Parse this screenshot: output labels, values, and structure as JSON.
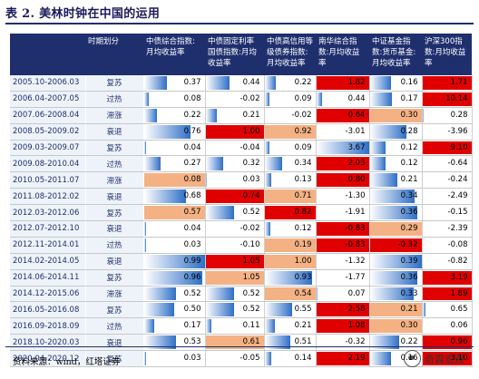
{
  "title": "表 2. 美林时钟在中国的运用",
  "headers": [
    "",
    "时期划分",
    "中债综合指数:月均收益率",
    "中债固定利率国债指数:月均收益率",
    "中债高信用等级债券指数:月均收益率",
    "南华综合指数:月均收益率",
    "中证基金指数:货币基金:月均收益率",
    "沪深300指数:月均收益率"
  ],
  "rows": [
    {
      "period": "2005.10-2006.03",
      "phase": "复苏",
      "values": [
        "0.37",
        "0.44",
        "0.22",
        "1.82",
        "0.16",
        "1.71"
      ]
    },
    {
      "period": "2006.04-2007.05",
      "phase": "过热",
      "values": [
        "0.08",
        "-0.02",
        "0.09",
        "0.44",
        "0.17",
        "10.14"
      ]
    },
    {
      "period": "2007.06-2008.04",
      "phase": "滞涨",
      "values": [
        "0.22",
        "0.21",
        "-0.02",
        "0.64",
        "0.30",
        "0.28"
      ]
    },
    {
      "period": "2008.05-2009.02",
      "phase": "衰退",
      "values": [
        "0.76",
        "1.00",
        "0.92",
        "-3.01",
        "0.28",
        "-3.96"
      ]
    },
    {
      "period": "2009.03-2009.07",
      "phase": "复苏",
      "values": [
        "0.04",
        "-0.04",
        "0.09",
        "3.67",
        "0.12",
        "9.10"
      ]
    },
    {
      "period": "2009.08-2010.04",
      "phase": "过热",
      "values": [
        "0.27",
        "0.32",
        "0.34",
        "2.03",
        "0.12",
        "-0.64"
      ]
    },
    {
      "period": "2010.05-2011.07",
      "phase": "滞涨",
      "values": [
        "0.08",
        "0.03",
        "0.13",
        "0.80",
        "0.21",
        "-0.24"
      ]
    },
    {
      "period": "2011.08-2012.02",
      "phase": "衰退",
      "values": [
        "0.68",
        "0.74",
        "0.71",
        "-1.30",
        "0.34",
        "-2.49"
      ]
    },
    {
      "period": "2012.03-2012.06",
      "phase": "复苏",
      "values": [
        "0.57",
        "0.52",
        "0.82",
        "-1.91",
        "0.36",
        "-0.15"
      ]
    },
    {
      "period": "2012.07-2012.10",
      "phase": "衰退",
      "values": [
        "0.04",
        "-0.02",
        "0.12",
        "-0.83",
        "0.29",
        "-2.39"
      ]
    },
    {
      "period": "2012.11-2014.01",
      "phase": "过热",
      "values": [
        "0.03",
        "-0.10",
        "0.19",
        "-0.83",
        "-0.32",
        "-0.08"
      ]
    },
    {
      "period": "2014.02-2014.05",
      "phase": "衰退",
      "values": [
        "0.99",
        "1.05",
        "1.00",
        "-1.32",
        "0.39",
        "-0.82"
      ]
    },
    {
      "period": "2014.06-2014.11",
      "phase": "复苏",
      "values": [
        "0.96",
        "1.05",
        "0.93",
        "-1.77",
        "0.36",
        "3.19"
      ]
    },
    {
      "period": "2014.12-2015.06",
      "phase": "滞涨",
      "values": [
        "0.52",
        "0.52",
        "0.54",
        "0.07",
        "0.33",
        "1.89"
      ]
    },
    {
      "period": "2016.05-2016.08",
      "phase": "复苏",
      "values": [
        "0.50",
        "0.52",
        "0.55",
        "2.58",
        "0.21",
        "0.65"
      ]
    },
    {
      "period": "2016.09-2018.09",
      "phase": "过热",
      "values": [
        "0.17",
        "0.11",
        "0.21",
        "1.08",
        "0.30",
        "0.06"
      ]
    },
    {
      "period": "2018.10-2020.03",
      "phase": "衰退",
      "values": [
        "0.53",
        "0.61",
        "0.51",
        "-0.32",
        "0.22",
        "0.96"
      ]
    },
    {
      "period": "2020.04-2020.12",
      "phase": "复苏",
      "values": [
        "0.03",
        "-0.05",
        "0.14",
        "2.19",
        "0.16",
        "3.10"
      ]
    }
  ],
  "highlights": [
    {
      "row": 0,
      "col": 3,
      "color": "#e00000"
    },
    {
      "row": 0,
      "col": 5,
      "color": "#e00000"
    },
    {
      "row": 1,
      "col": 5,
      "color": "#e00000"
    },
    {
      "row": 2,
      "col": 3,
      "color": "#e00000"
    },
    {
      "row": 2,
      "col": 4,
      "color": "#f4b183"
    },
    {
      "row": 3,
      "col": 1,
      "color": "#e00000"
    },
    {
      "row": 3,
      "col": 2,
      "color": "#f4b183"
    },
    {
      "row": 4,
      "col": 5,
      "color": "#e00000"
    },
    {
      "row": 5,
      "col": 3,
      "color": "#e00000"
    },
    {
      "row": 6,
      "col": 0,
      "color": "#f4b183"
    },
    {
      "row": 6,
      "col": 3,
      "color": "#e00000"
    },
    {
      "row": 7,
      "col": 1,
      "color": "#e00000"
    },
    {
      "row": 7,
      "col": 2,
      "color": "#f4b183"
    },
    {
      "row": 8,
      "col": 0,
      "color": "#f4b183"
    },
    {
      "row": 8,
      "col": 2,
      "color": "#e00000"
    },
    {
      "row": 9,
      "col": 3,
      "color": "#e00000"
    },
    {
      "row": 9,
      "col": 4,
      "color": "#f4b183"
    },
    {
      "row": 10,
      "col": 2,
      "color": "#f4b183"
    },
    {
      "row": 10,
      "col": 3,
      "color": "#e00000"
    },
    {
      "row": 10,
      "col": 4,
      "color": "#e00000"
    },
    {
      "row": 11,
      "col": 1,
      "color": "#e00000"
    },
    {
      "row": 11,
      "col": 2,
      "color": "#f4b183"
    },
    {
      "row": 12,
      "col": 1,
      "color": "#f4b183"
    },
    {
      "row": 12,
      "col": 5,
      "color": "#e00000"
    },
    {
      "row": 13,
      "col": 2,
      "color": "#f4b183"
    },
    {
      "row": 13,
      "col": 5,
      "color": "#e00000"
    },
    {
      "row": 14,
      "col": 3,
      "color": "#e00000"
    },
    {
      "row": 14,
      "col": 4,
      "color": "#f4b183"
    },
    {
      "row": 15,
      "col": 3,
      "color": "#e00000"
    },
    {
      "row": 15,
      "col": 4,
      "color": "#f4b183"
    },
    {
      "row": 16,
      "col": 1,
      "color": "#f4b183"
    },
    {
      "row": 16,
      "col": 5,
      "color": "#e00000"
    },
    {
      "row": 17,
      "col": 3,
      "color": "#e00000"
    },
    {
      "row": 17,
      "col": 5,
      "color": "#e00000"
    }
  ],
  "source": "资料来源：wind，红塔证券",
  "watermark": "奇霖宏观",
  "colors": {
    "header": "#1f2f6e",
    "bar_blue": "#2f6fc7",
    "red": "#e00000",
    "salmon": "#f4b183"
  }
}
